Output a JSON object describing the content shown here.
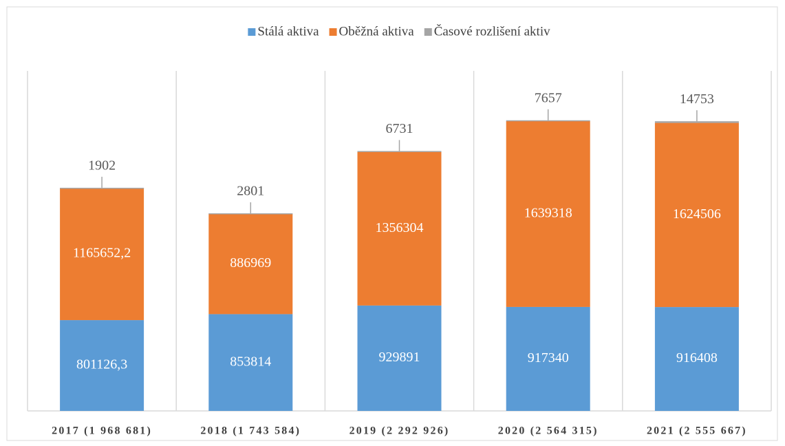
{
  "chart_data": {
    "type": "stacked_bar",
    "categories": [
      "2017 (1 968 681)",
      "2018 (1 743 584)",
      "2019 (2 292 926)",
      "2020 (2 564 315)",
      "2021 (2 555 667)"
    ],
    "series": [
      {
        "name": "Stálá aktiva",
        "color": "#5b9bd5",
        "values": [
          801126.3,
          853814,
          929891,
          917340,
          916408
        ],
        "value_labels": [
          "801126,3",
          "853814",
          "929891",
          "917340",
          "916408"
        ]
      },
      {
        "name": "Oběžná aktiva",
        "color": "#ed7d31",
        "values": [
          1165652.2,
          886969,
          1356304,
          1639318,
          1624506
        ],
        "value_labels": [
          "1165652,2",
          "886969",
          "1356304",
          "1639318",
          "1624506"
        ]
      },
      {
        "name": "Časové rozlišení aktiv",
        "color": "#a5a5a5",
        "values": [
          1902,
          2801,
          6731,
          7657,
          14753
        ]
      }
    ],
    "ylim": [
      0,
      3000000
    ],
    "legend": "top"
  }
}
